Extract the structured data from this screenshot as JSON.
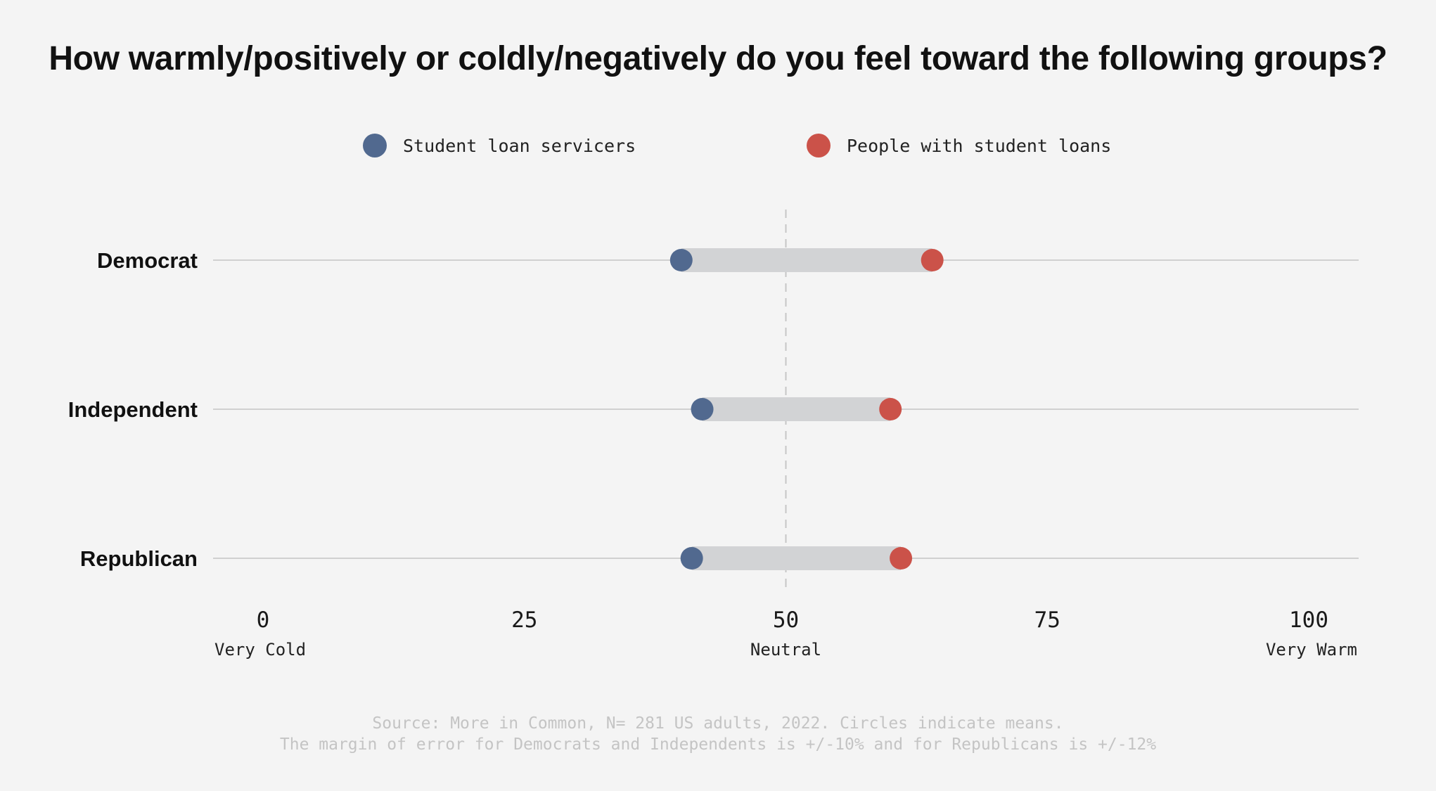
{
  "chart_data": {
    "type": "dumbbell",
    "title": "How warmly/positively or coldly/negatively do you feel toward the following groups?",
    "legend": {
      "placement": "top-center",
      "items": [
        {
          "name": "Student loan servicers",
          "color": "#51698f"
        },
        {
          "name": "People with student loans",
          "color": "#cb5249"
        }
      ]
    },
    "categories": [
      "Democrat",
      "Independent",
      "Republican"
    ],
    "series": [
      {
        "name": "Student loan servicers",
        "color": "#51698f",
        "values": [
          40,
          42,
          41
        ]
      },
      {
        "name": "People with student loans",
        "color": "#cb5249",
        "values": [
          64,
          60,
          61
        ]
      }
    ],
    "xlim": [
      0,
      100
    ],
    "x_ticks": [
      0,
      25,
      50,
      75,
      100
    ],
    "x_tick_labels": [
      "0",
      "25",
      "50",
      "75",
      "100"
    ],
    "x_anchor_labels": [
      {
        "value": 0,
        "label": "Very Cold"
      },
      {
        "value": 50,
        "label": "Neutral"
      },
      {
        "value": 100,
        "label": "Very Warm"
      }
    ],
    "reference_line": {
      "value": 50,
      "style": "dashed"
    },
    "colors": {
      "background": "#f4f4f4",
      "range_bar": "#d2d3d5",
      "row_line": "#d0d0d0",
      "reference_line": "#c6c6c6",
      "source_text": "#c4c4c4"
    },
    "source_lines": [
      "Source: More in Common, N= 281 US adults, 2022. Circles indicate means.",
      "The margin of error for Democrats and Independents is +/-10% and for Republicans is +/-12%"
    ]
  }
}
